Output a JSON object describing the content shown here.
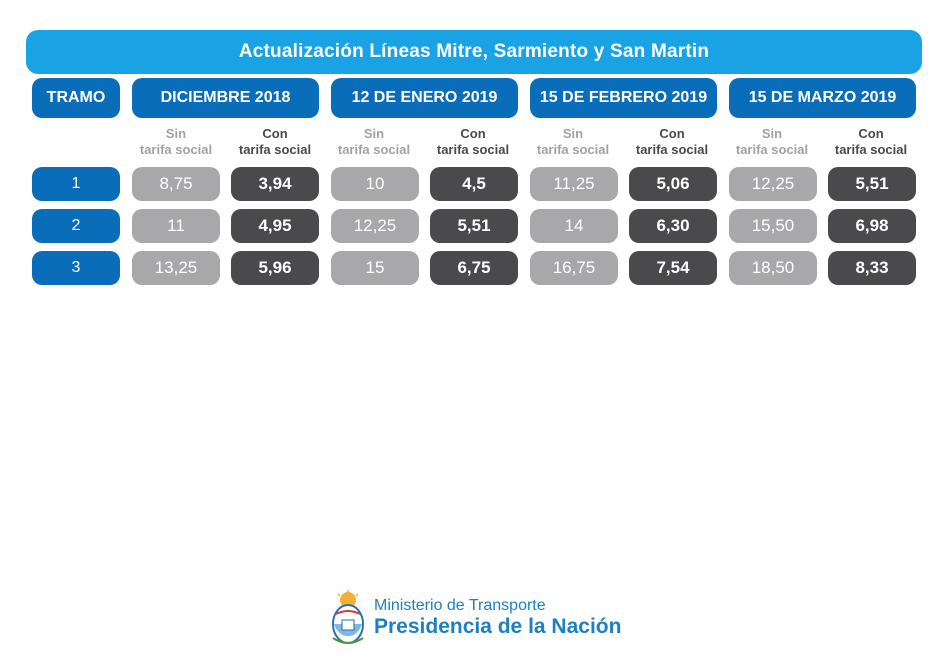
{
  "title": "Actualización Líneas Mitre, Sarmiento y San Martin",
  "tramo_label": "TRAMO",
  "periods": [
    "DICIEMBRE 2018",
    "12 DE ENERO 2019",
    "15 DE FEBRERO 2019",
    "15 DE MARZO 2019"
  ],
  "subheaders": {
    "sin_line1": "Sin",
    "sin_line2": "tarifa social",
    "con_line1": "Con",
    "con_line2": "tarifa social"
  },
  "rows": [
    {
      "tramo": "1",
      "values": [
        "8,75",
        "3,94",
        "10",
        "4,5",
        "11,25",
        "5,06",
        "12,25",
        "5,51"
      ]
    },
    {
      "tramo": "2",
      "values": [
        "11",
        "4,95",
        "12,25",
        "5,51",
        "14",
        "6,30",
        "15,50",
        "6,98"
      ]
    },
    {
      "tramo": "3",
      "values": [
        "13,25",
        "5,96",
        "15",
        "6,75",
        "16,75",
        "7,54",
        "18,50",
        "8,33"
      ]
    }
  ],
  "footer": {
    "line1": "Ministerio de Transporte",
    "line2": "Presidencia de la Nación"
  },
  "colors": {
    "title_bg": "#1aa3e4",
    "header_bg": "#0a6db9",
    "light_cell": "#a8a8aa",
    "dark_cell": "#4a4a4c",
    "footer_text": "#1d7fc4"
  }
}
